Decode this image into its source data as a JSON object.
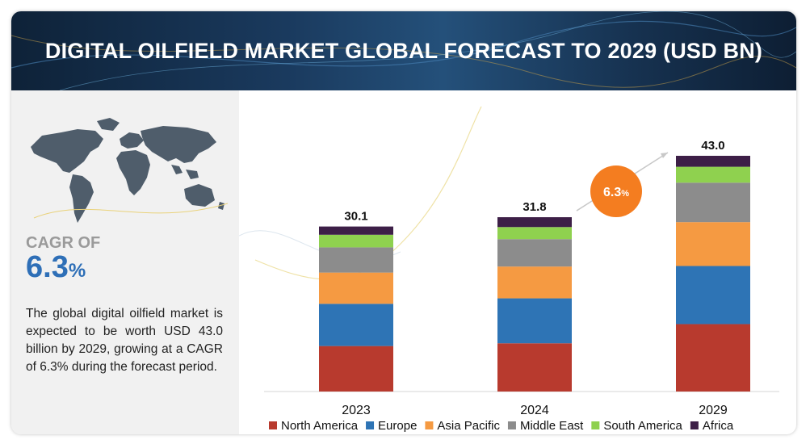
{
  "header": {
    "title": "DIGITAL OILFIELD MARKET GLOBAL FORECAST TO 2029 (USD BN)"
  },
  "sidebar": {
    "cagr_label": "CAGR OF",
    "cagr_number": "6.3",
    "cagr_percent": "%",
    "description": "The global digital oilfield market is expected to be worth USD 43.0 billion by 2029, growing at a CAGR of 6.3% during the forecast period."
  },
  "badge": {
    "cagr": "6.3",
    "pct": "%"
  },
  "colors": {
    "North America": "#b83a2e",
    "Europe": "#2e74b5",
    "Asia Pacific": "#f59a42",
    "Middle East": "#8c8c8c",
    "South America": "#8fd14f",
    "Africa": "#3d1f47",
    "badge": "#f47d20",
    "accent": "#2e6fb7"
  },
  "chart_data": {
    "type": "bar",
    "stacked": true,
    "categories": [
      "2023",
      "2024",
      "2029"
    ],
    "totals": [
      "30.1",
      "31.8",
      "43.0"
    ],
    "ylim": [
      0,
      43
    ],
    "series": [
      {
        "name": "North America",
        "values": [
          8.3,
          8.8,
          12.3
        ]
      },
      {
        "name": "Europe",
        "values": [
          7.7,
          8.2,
          10.6
        ]
      },
      {
        "name": "Asia Pacific",
        "values": [
          5.7,
          5.8,
          8.0
        ]
      },
      {
        "name": "Middle East",
        "values": [
          4.6,
          5.0,
          7.2
        ]
      },
      {
        "name": "South America",
        "values": [
          2.3,
          2.2,
          2.9
        ]
      },
      {
        "name": "Africa",
        "values": [
          1.5,
          1.8,
          2.0
        ]
      }
    ],
    "legend_position": "bottom",
    "grid": false
  }
}
